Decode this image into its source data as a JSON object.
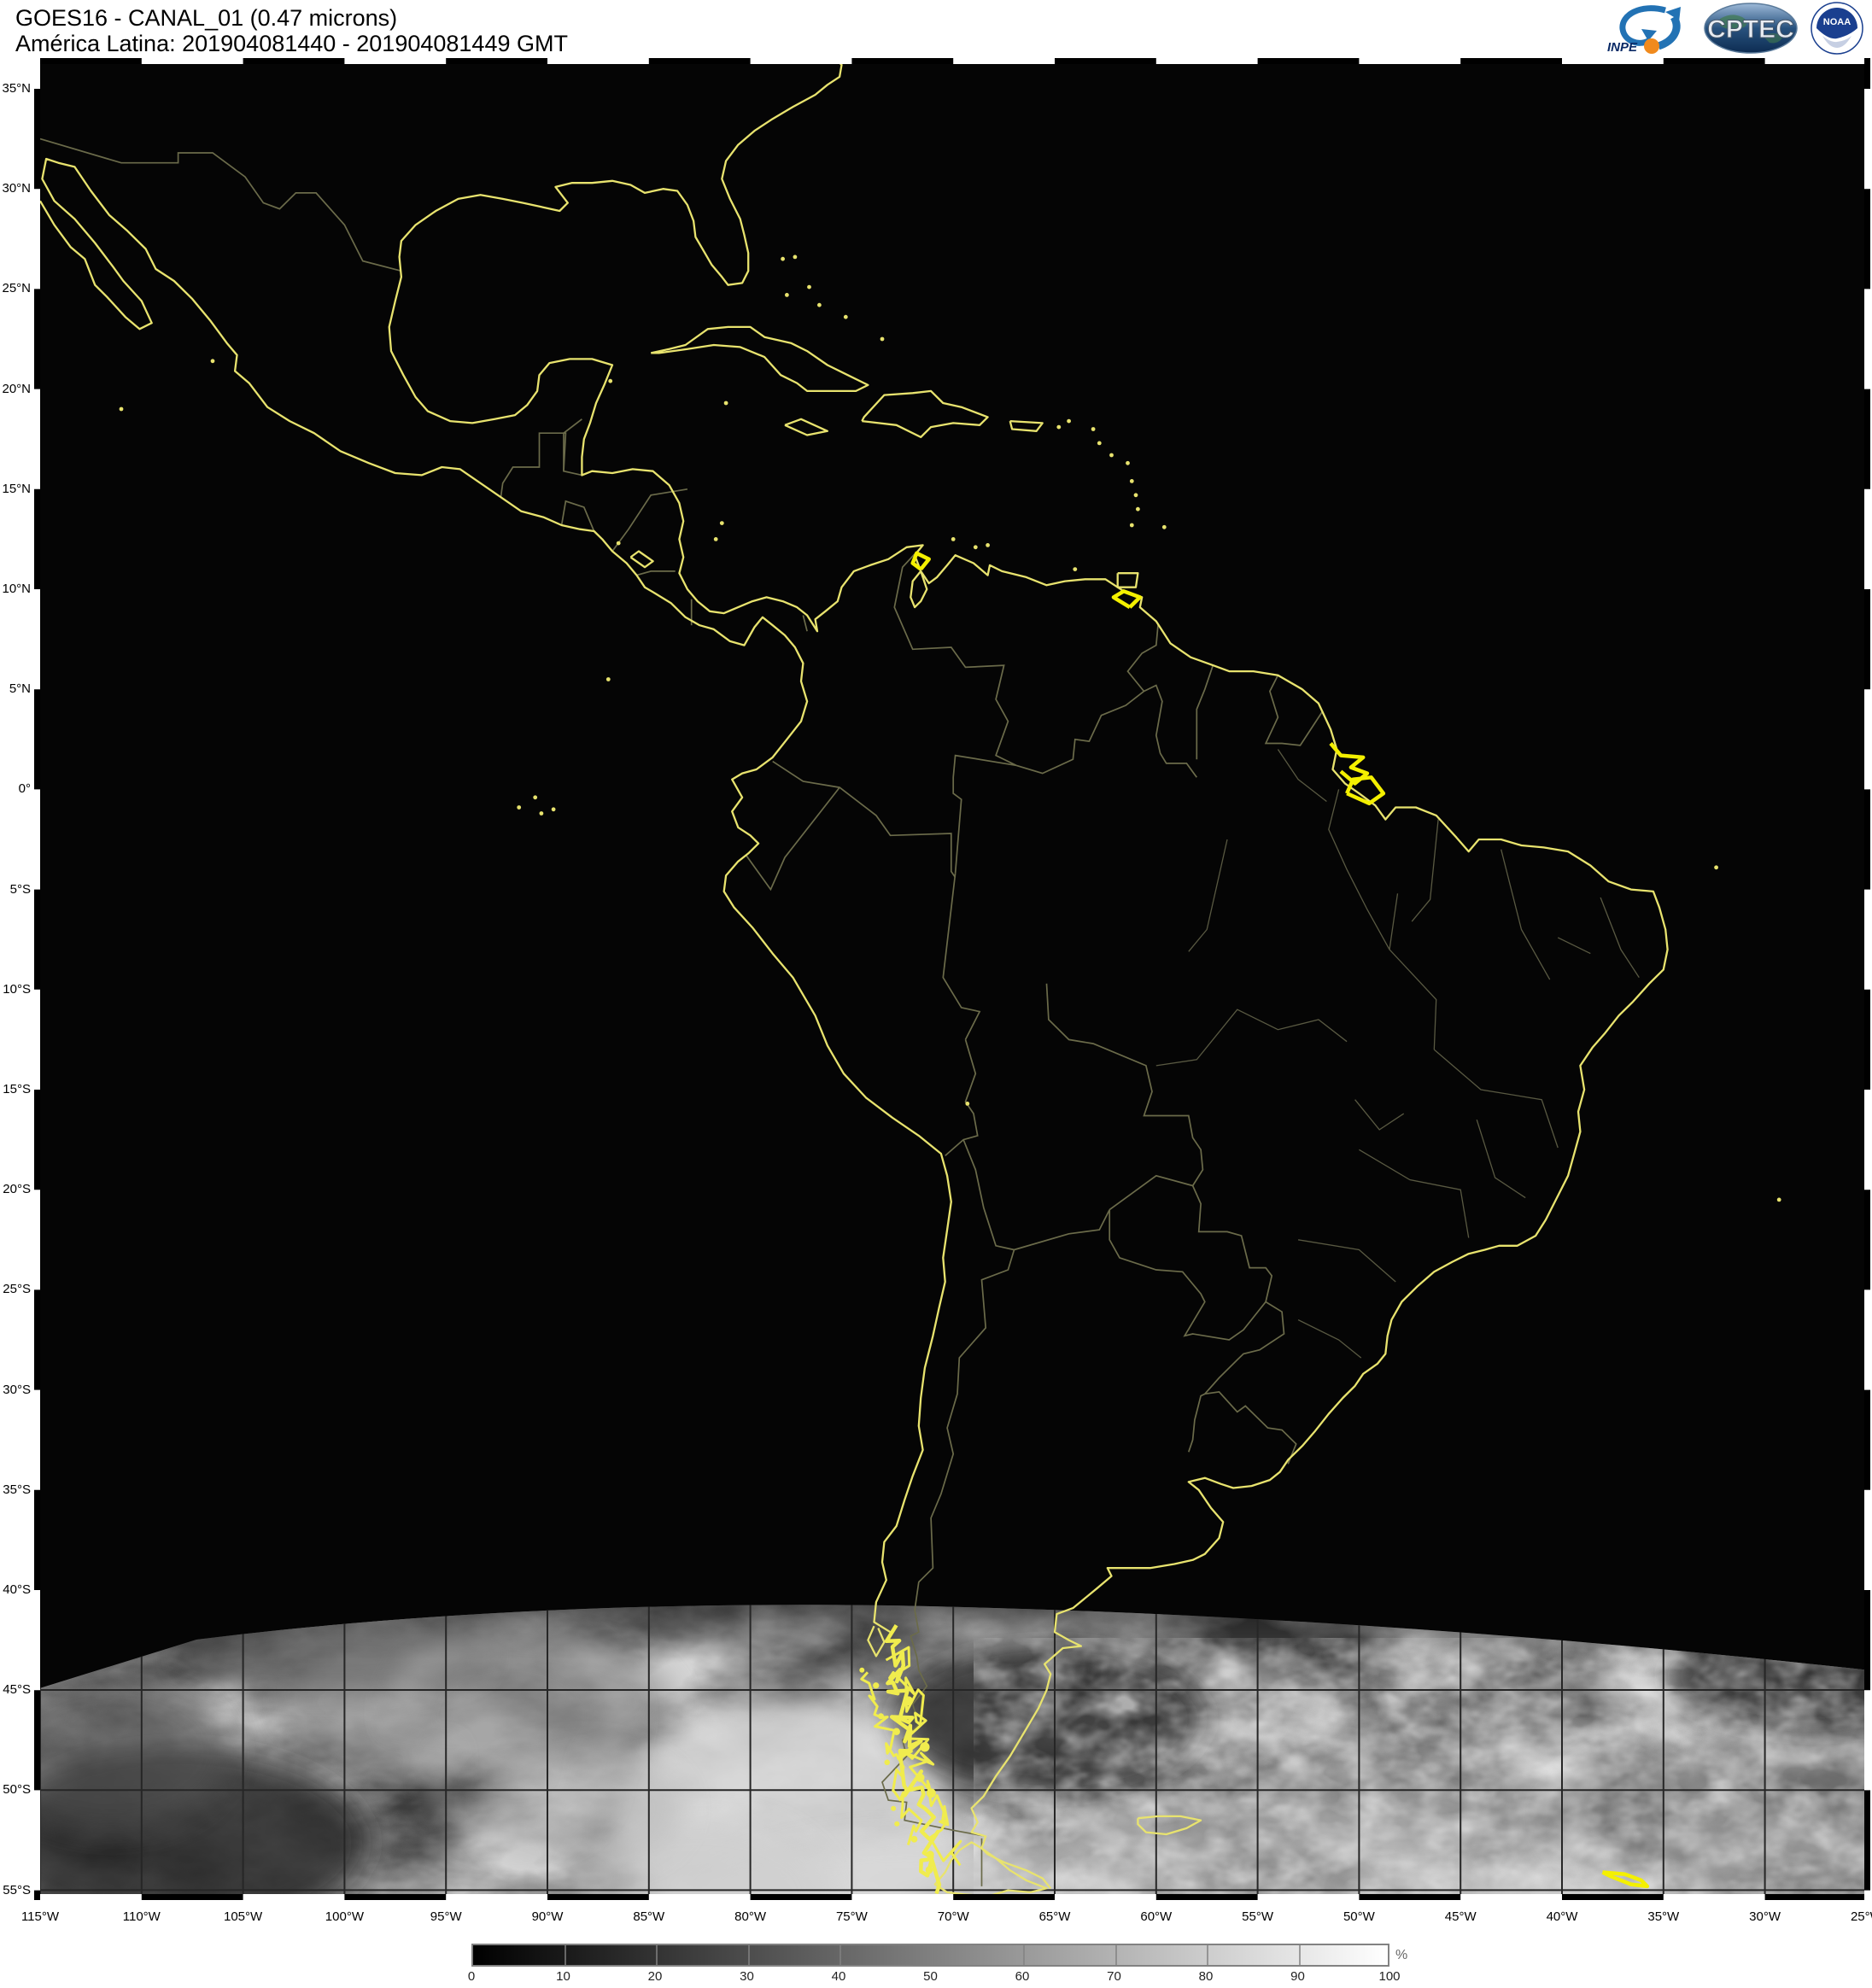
{
  "header": {
    "title_line1": "GOES16 - CANAL_01 (0.47 microns)",
    "title_line2": "América Latina: 201904081440 - 201904081449 GMT"
  },
  "logos": {
    "inpe_label": "INPE",
    "cptec_label": "CPTEC",
    "noaa_label": "NOAA"
  },
  "map": {
    "lat_labels": [
      "35°N",
      "30°N",
      "25°N",
      "20°N",
      "15°N",
      "10°N",
      "5°N",
      "0°",
      "5°S",
      "10°S",
      "15°S",
      "20°S",
      "25°S",
      "30°S",
      "35°S",
      "40°S",
      "45°S",
      "50°S",
      "55°S"
    ],
    "lon_labels": [
      "115°W",
      "110°W",
      "105°W",
      "100°W",
      "95°W",
      "90°W",
      "85°W",
      "80°W",
      "75°W",
      "70°W",
      "65°W",
      "60°W",
      "55°W",
      "50°W",
      "45°W",
      "40°W",
      "35°W",
      "30°W",
      "25°W"
    ]
  },
  "colorbar": {
    "tick_labels": [
      "0",
      "10",
      "20",
      "30",
      "40",
      "50",
      "60",
      "70",
      "80",
      "90",
      "100"
    ],
    "unit": "%",
    "min_color": "#000000",
    "max_color": "#ffffff"
  },
  "colors": {
    "coastline": "#e8e36e",
    "coastline_bright": "#f4f000",
    "country_border": "#6b6b4a",
    "state_border": "#59594200",
    "night_background": "#050505",
    "page_background": "#ffffff"
  }
}
